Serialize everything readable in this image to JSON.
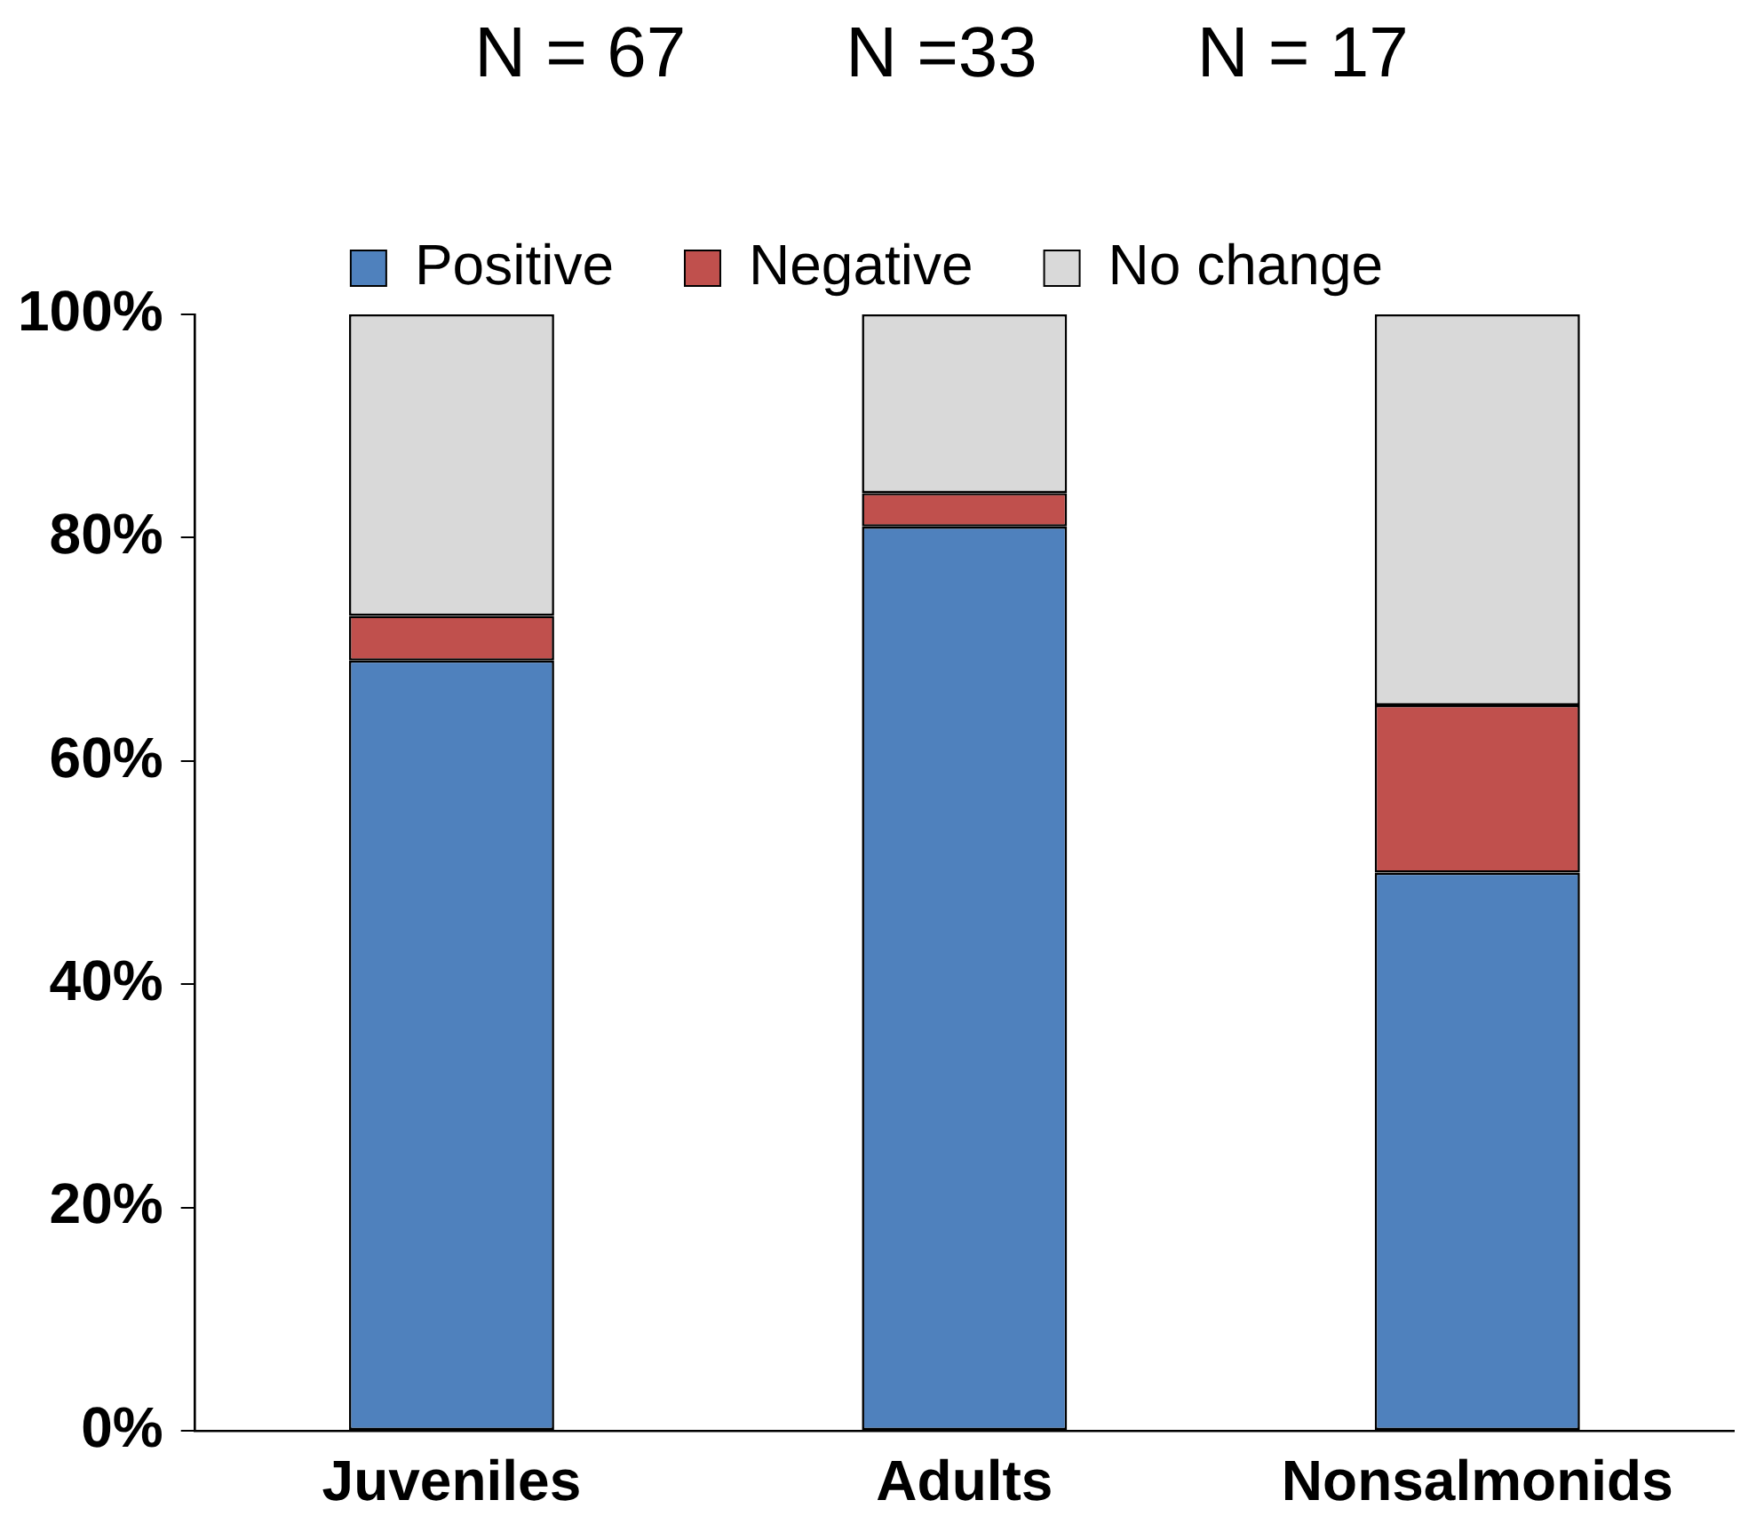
{
  "chart_data": {
    "type": "bar",
    "stacked": true,
    "categories": [
      "Juveniles",
      "Adults",
      "Nonsalmonids"
    ],
    "series": [
      {
        "name": "Positive",
        "color": "#4f81bd",
        "values": [
          69,
          81,
          50
        ]
      },
      {
        "name": "Negative",
        "color": "#c0504d",
        "values": [
          4,
          3,
          15
        ]
      },
      {
        "name": "No change",
        "color": "#d9d9d9",
        "values": [
          27,
          16,
          35
        ]
      }
    ],
    "ylim": [
      0,
      100
    ],
    "yticks": [
      {
        "value": 0,
        "label": "0%"
      },
      {
        "value": 20,
        "label": "20%"
      },
      {
        "value": 40,
        "label": "40%"
      },
      {
        "value": 60,
        "label": "60%"
      },
      {
        "value": 80,
        "label": "80%"
      },
      {
        "value": 100,
        "label": "100%"
      }
    ],
    "grid": false,
    "legend": "top",
    "annotations": [
      "N = 67",
      "N =33",
      "N = 17"
    ]
  }
}
